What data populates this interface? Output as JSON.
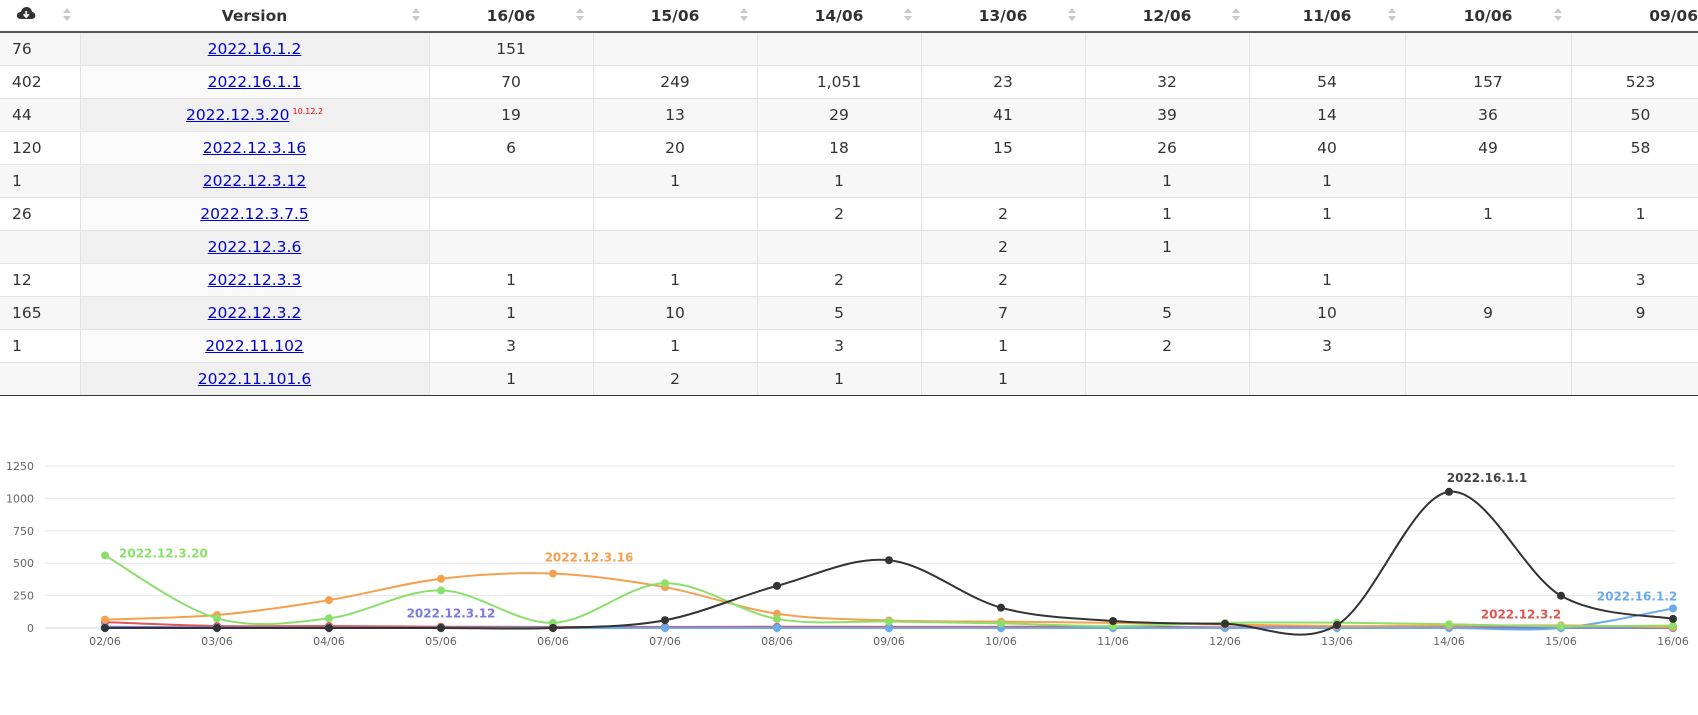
{
  "table": {
    "headers": {
      "download_icon": "cloud-download-icon",
      "version": "Version",
      "dates": [
        "16/06",
        "15/06",
        "14/06",
        "13/06",
        "12/06",
        "11/06",
        "10/06",
        "09/06"
      ]
    },
    "rows": [
      {
        "total": "76",
        "version": "2022.16.1.2",
        "tag": "",
        "cells": [
          "151",
          "",
          "",
          "",
          "",
          "",
          "",
          ""
        ]
      },
      {
        "total": "402",
        "version": "2022.16.1.1",
        "tag": "",
        "cells": [
          "70",
          "249",
          "1,051",
          "23",
          "32",
          "54",
          "157",
          "523"
        ]
      },
      {
        "total": "44",
        "version": "2022.12.3.20",
        "tag": "10.12.2",
        "cells": [
          "19",
          "13",
          "29",
          "41",
          "39",
          "14",
          "36",
          "50"
        ]
      },
      {
        "total": "120",
        "version": "2022.12.3.16",
        "tag": "",
        "cells": [
          "6",
          "20",
          "18",
          "15",
          "26",
          "40",
          "49",
          "58"
        ]
      },
      {
        "total": "1",
        "version": "2022.12.3.12",
        "tag": "",
        "cells": [
          "",
          "1",
          "1",
          "",
          "1",
          "1",
          "",
          ""
        ]
      },
      {
        "total": "26",
        "version": "2022.12.3.7.5",
        "tag": "",
        "cells": [
          "",
          "",
          "2",
          "2",
          "1",
          "1",
          "1",
          "1"
        ]
      },
      {
        "total": "",
        "version": "2022.12.3.6",
        "tag": "",
        "cells": [
          "",
          "",
          "",
          "2",
          "1",
          "",
          "",
          ""
        ]
      },
      {
        "total": "12",
        "version": "2022.12.3.3",
        "tag": "",
        "cells": [
          "1",
          "1",
          "2",
          "2",
          "",
          "1",
          "",
          "3"
        ]
      },
      {
        "total": "165",
        "version": "2022.12.3.2",
        "tag": "",
        "cells": [
          "1",
          "10",
          "5",
          "7",
          "5",
          "10",
          "9",
          "9"
        ]
      },
      {
        "total": "1",
        "version": "2022.11.102",
        "tag": "",
        "cells": [
          "3",
          "1",
          "3",
          "1",
          "2",
          "3",
          "",
          ""
        ]
      },
      {
        "total": "",
        "version": "2022.11.101.6",
        "tag": "",
        "cells": [
          "1",
          "2",
          "1",
          "1",
          "",
          "",
          "",
          ""
        ]
      }
    ]
  },
  "chart_data": {
    "type": "line",
    "categories": [
      "02/06",
      "03/06",
      "04/06",
      "05/06",
      "06/06",
      "07/06",
      "08/06",
      "09/06",
      "10/06",
      "11/06",
      "12/06",
      "13/06",
      "14/06",
      "15/06",
      "16/06"
    ],
    "ylim": [
      0,
      1250
    ],
    "yticks": [
      0,
      250,
      500,
      750,
      1000,
      1250
    ],
    "grid": true,
    "series": [
      {
        "name": "2022.16.1.1",
        "color": "#333333",
        "values": [
          0,
          0,
          0,
          0,
          0,
          60,
          325,
          523,
          157,
          54,
          32,
          23,
          1051,
          249,
          70
        ]
      },
      {
        "name": "2022.12.3.20",
        "color": "#8be06b",
        "values": [
          560,
          75,
          75,
          290,
          40,
          345,
          70,
          50,
          36,
          14,
          39,
          41,
          29,
          13,
          19
        ]
      },
      {
        "name": "2022.12.3.16",
        "color": "#f4a04f",
        "values": [
          65,
          100,
          215,
          380,
          420,
          315,
          110,
          58,
          49,
          40,
          26,
          15,
          18,
          20,
          6
        ]
      },
      {
        "name": "2022.12.3.12",
        "color": "#7b7bdc",
        "values": [
          10,
          5,
          3,
          3,
          3,
          2,
          2,
          0,
          0,
          1,
          1,
          0,
          1,
          1,
          0
        ]
      },
      {
        "name": "2022.12.3.2",
        "color": "#e05555",
        "values": [
          45,
          15,
          15,
          10,
          8,
          8,
          10,
          9,
          9,
          10,
          5,
          7,
          5,
          10,
          1
        ]
      },
      {
        "name": "2022.16.1.2",
        "color": "#6aa9ec",
        "values": [
          0,
          0,
          0,
          0,
          0,
          0,
          0,
          0,
          0,
          0,
          0,
          0,
          0,
          0,
          151
        ]
      }
    ],
    "labels": [
      {
        "series": "2022.12.3.20",
        "text": "2022.12.3.20",
        "at": 0
      },
      {
        "series": "2022.12.3.16",
        "text": "2022.12.3.16",
        "at": 4
      },
      {
        "series": "2022.12.3.12",
        "text": "2022.12.3.12",
        "at": 3
      },
      {
        "series": "2022.16.1.1",
        "text": "2022.16.1.1",
        "at": 12
      },
      {
        "series": "2022.12.3.2",
        "text": "2022.12.3.2",
        "at": 13
      },
      {
        "series": "2022.16.1.2",
        "text": "2022.16.1.2",
        "at": 14
      }
    ]
  }
}
